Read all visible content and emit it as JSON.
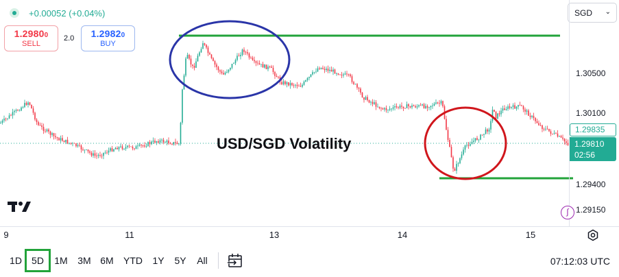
{
  "header": {
    "change": "+0.00052 (+0.04%)",
    "sell": {
      "price_main": "1.2980",
      "price_small": "0",
      "label": "SELL"
    },
    "spread": "2.0",
    "buy": {
      "price_main": "1.2982",
      "price_small": "0",
      "label": "BUY"
    },
    "currency": "SGD"
  },
  "overlay_title": "USD/SGD Volatility",
  "price_axis": {
    "ticks": [
      "1.30500",
      "1.30100",
      "1.29400",
      "1.29150"
    ],
    "bid_tag": "1.29835",
    "last_price": "1.29810",
    "countdown": "02:56"
  },
  "time_axis": [
    "9",
    "11",
    "13",
    "14",
    "15"
  ],
  "toolbar": {
    "ranges": [
      "1D",
      "5D",
      "1M",
      "3M",
      "6M",
      "YTD",
      "1Y",
      "5Y",
      "All"
    ],
    "active_range": "5D",
    "clock": "07:12:03 UTC"
  },
  "icons": {
    "live": "live-dot-icon",
    "chevron": "chevron-down-icon",
    "logo": "tradingview-logo",
    "alert": "alert-icon",
    "settings": "gear-icon",
    "compare": "date-range-icon"
  },
  "colors": {
    "up": "#22ab94",
    "down": "#f23645",
    "annotation_line": "#22a33a",
    "ellipse_blue": "#2a35a8",
    "ellipse_red": "#d0161c"
  }
}
